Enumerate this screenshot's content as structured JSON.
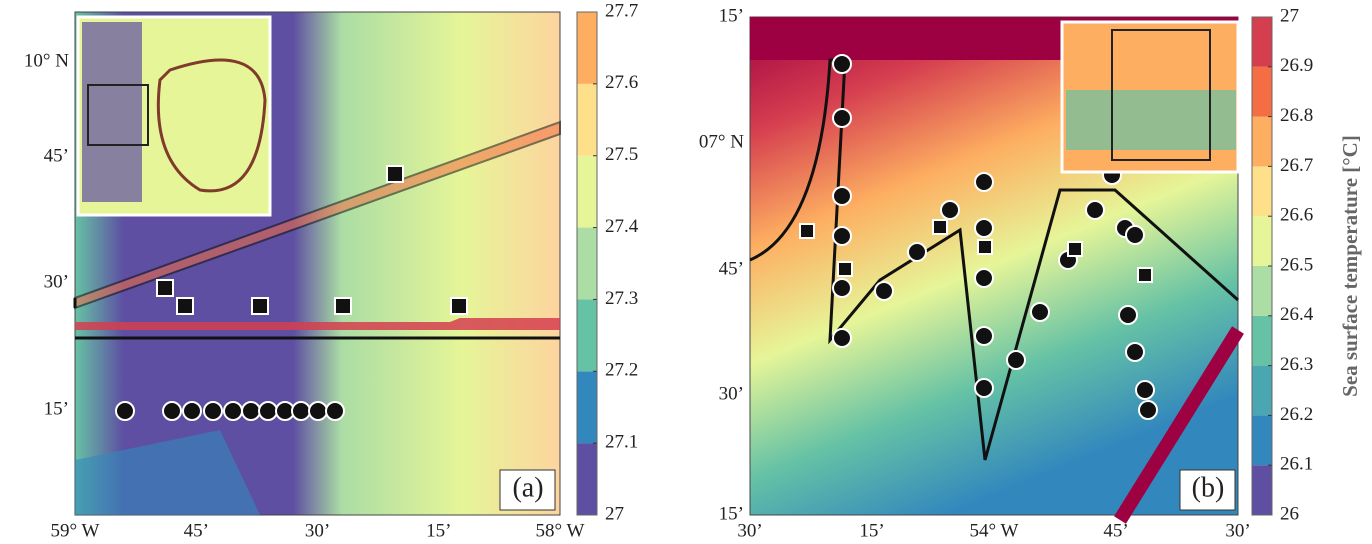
{
  "panels": [
    {
      "label": "(a)",
      "x_labels": [
        "59° W",
        "45’",
        "30’",
        "15’",
        "58° W"
      ],
      "y_labels": [
        "10° N",
        "45’",
        "30’",
        "15’"
      ],
      "colorbar": {
        "lim": [
          27,
          27.7
        ],
        "ticks": [
          27,
          27.1,
          27.2,
          27.3,
          27.4,
          27.5,
          27.6,
          27.7
        ]
      }
    },
    {
      "label": "(b)",
      "x_labels": [
        "30’",
        "15’",
        "54° W",
        "45’",
        "30’"
      ],
      "y_labels": [
        "15’",
        "07° N",
        "45’",
        "30’",
        "15’"
      ],
      "colorbar": {
        "lim": [
          26,
          27
        ],
        "ticks": [
          26,
          26.1,
          26.2,
          26.3,
          26.4,
          26.5,
          26.6,
          26.7,
          26.8,
          26.9,
          27
        ],
        "title": "Sea surface temperature [°C]"
      }
    }
  ]
}
